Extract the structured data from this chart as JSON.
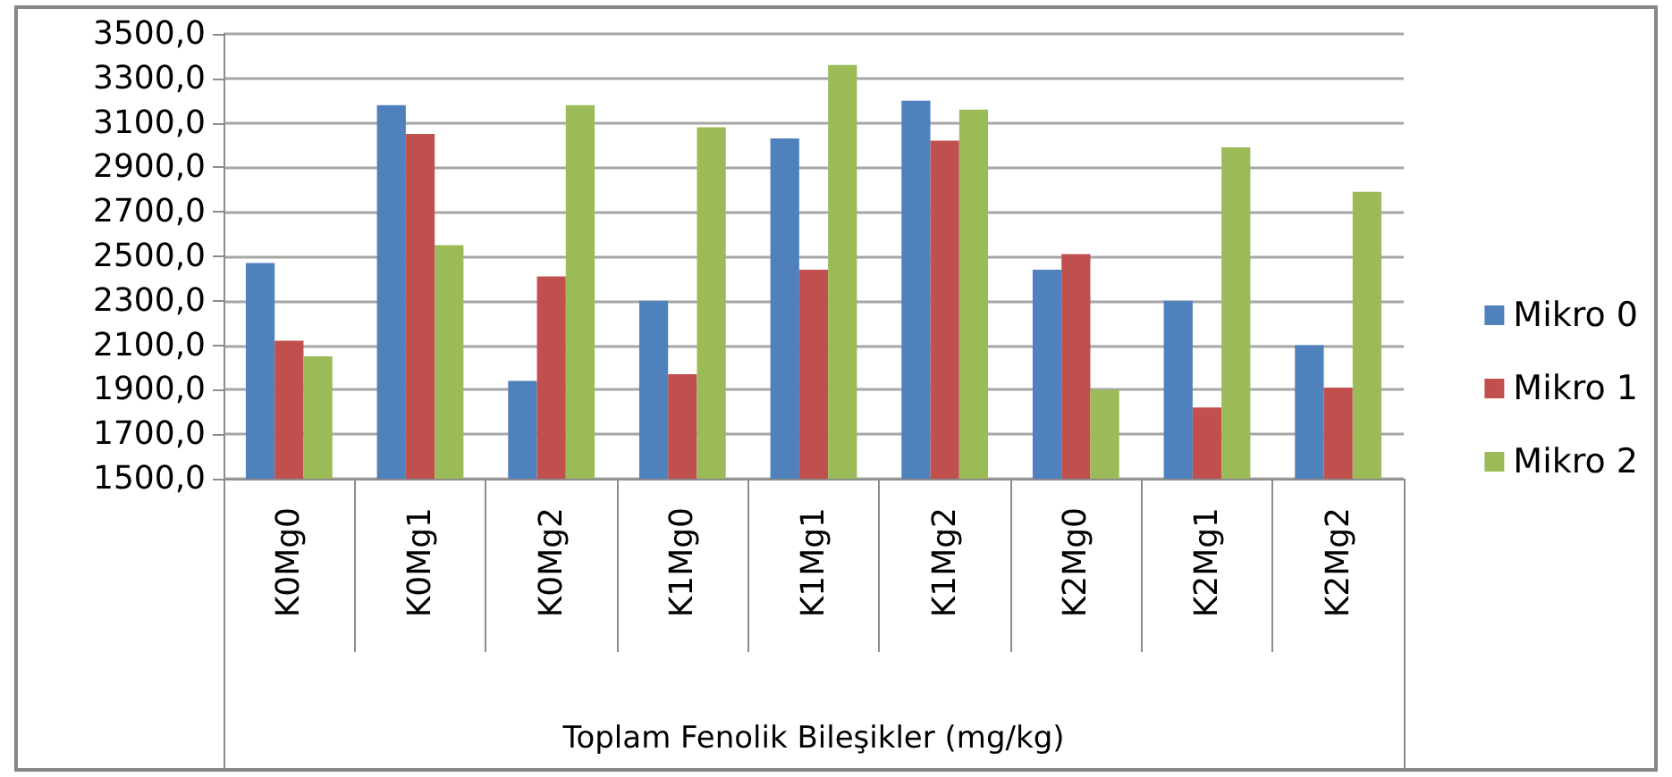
{
  "chart_data": {
    "type": "bar",
    "xlabel": "Toplam Fenolik Bileşikler (mg/kg)",
    "categories": [
      "K0Mg0",
      "K0Mg1",
      "K0Mg2",
      "K1Mg0",
      "K1Mg1",
      "K1Mg2",
      "K2Mg0",
      "K2Mg1",
      "K2Mg2"
    ],
    "series": [
      {
        "name": "Mikro 0",
        "color": "#4f81bd",
        "values": [
          2470,
          3180,
          1940,
          2300,
          3030,
          3200,
          2440,
          2300,
          2100
        ]
      },
      {
        "name": "Mikro 1",
        "color": "#c0504d",
        "values": [
          2120,
          3050,
          2410,
          1970,
          2440,
          3020,
          2510,
          1820,
          1910
        ]
      },
      {
        "name": "Mikro 2",
        "color": "#9bbb59",
        "values": [
          2050,
          2550,
          3180,
          3080,
          3360,
          3160,
          1900,
          2990,
          2790
        ]
      }
    ],
    "ylim": [
      1500,
      3500
    ],
    "yticks": [
      {
        "value": 1500,
        "label": "1500,0"
      },
      {
        "value": 1700,
        "label": "1700,0"
      },
      {
        "value": 1900,
        "label": "1900,0"
      },
      {
        "value": 2100,
        "label": "2100,0"
      },
      {
        "value": 2300,
        "label": "2300,0"
      },
      {
        "value": 2500,
        "label": "2500,0"
      },
      {
        "value": 2700,
        "label": "2700,0"
      },
      {
        "value": 2900,
        "label": "2900,0"
      },
      {
        "value": 3100,
        "label": "3100,0"
      },
      {
        "value": 3300,
        "label": "3300,0"
      },
      {
        "value": 3500,
        "label": "3500,0"
      }
    ],
    "grid": "y",
    "legend": "right"
  }
}
